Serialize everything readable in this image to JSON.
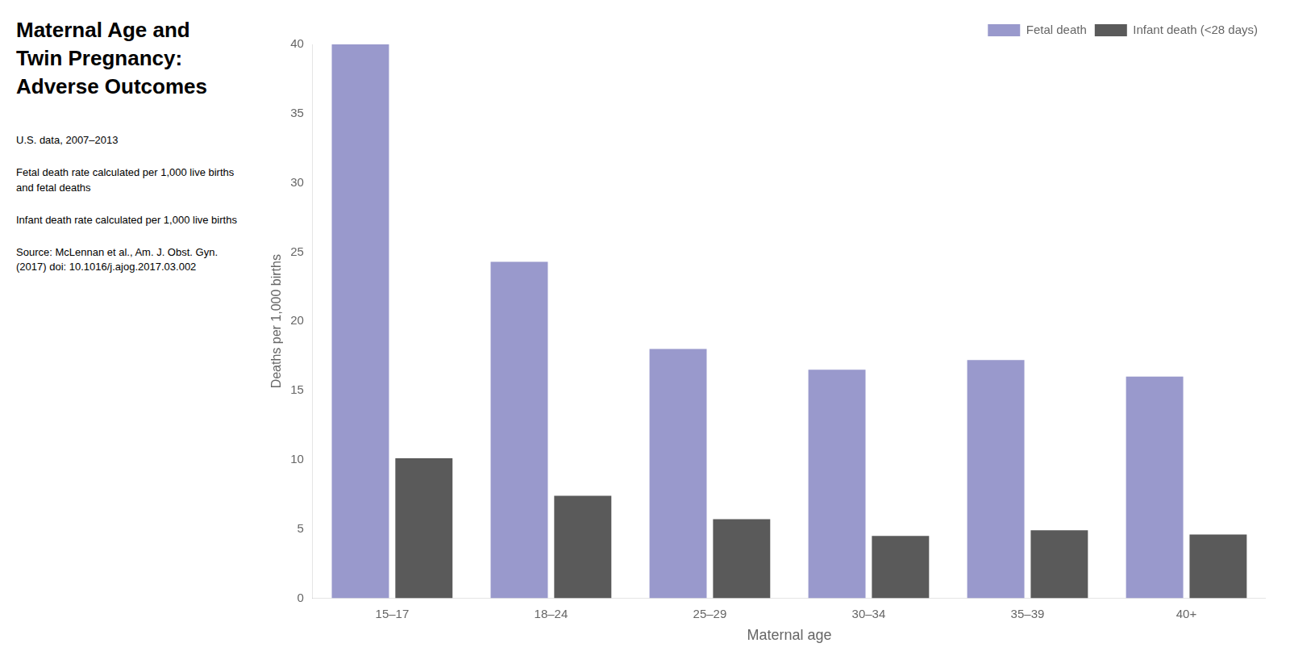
{
  "chart_data": {
    "type": "bar",
    "title": [
      "Maternal Age and",
      "Twin Pregnancy:",
      "Adverse Outcomes"
    ],
    "annotations": [
      "U.S. data, 2007–2013",
      "Fetal death rate calculated per 1,000 live births\nand fetal deaths",
      "Infant death rate calculated per 1,000 live births",
      "Source: McLennan et al., Am. J. Obst. Gyn.\n(2017) doi: 10.1016/j.ajog.2017.03.002"
    ],
    "categories": [
      "15–17",
      "18–24",
      "25–29",
      "30–34",
      "35–39",
      "40+"
    ],
    "series": [
      {
        "name": "Fetal death",
        "color": "#9999cc",
        "values": [
          40.0,
          24.3,
          18.0,
          16.5,
          17.2,
          16.0
        ]
      },
      {
        "name": "Infant death (<28 days)",
        "color": "#5a5a5a",
        "values": [
          10.1,
          7.4,
          5.7,
          4.5,
          4.9,
          4.6
        ]
      }
    ],
    "xlabel": "Maternal age",
    "ylabel": "Deaths per 1,000 births",
    "ylim": [
      0,
      40
    ],
    "yticks": [
      0,
      5,
      10,
      15,
      20,
      25,
      30,
      35,
      40
    ],
    "grid": false,
    "legend": "upper right"
  }
}
